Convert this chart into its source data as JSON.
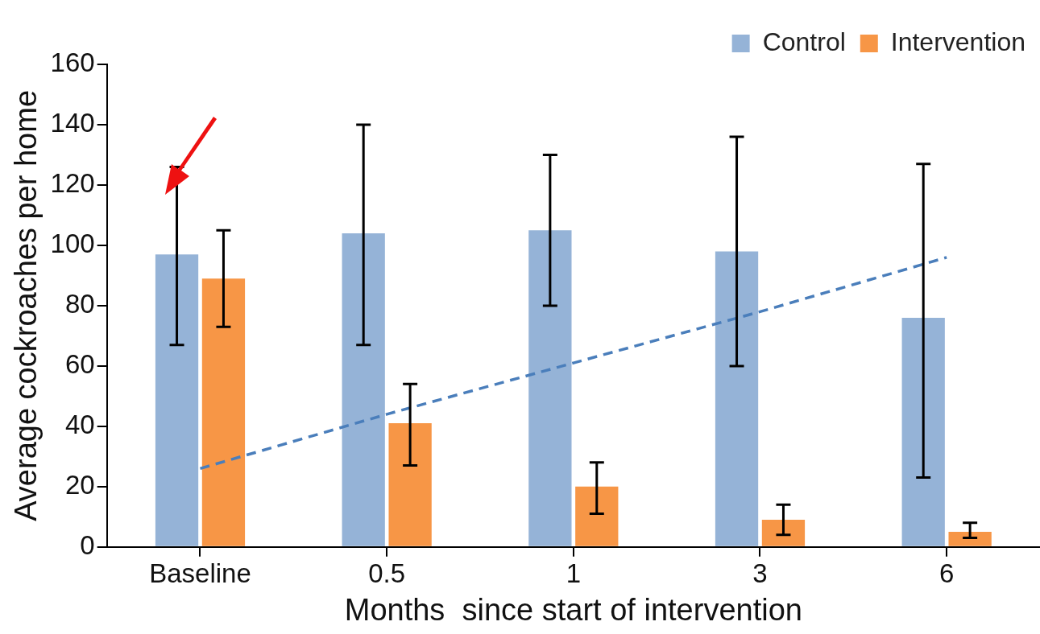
{
  "chart_data": {
    "type": "bar",
    "xlabel": "Months  since start of intervention",
    "ylabel": "Average cockroaches per home",
    "categories": [
      "Baseline",
      "0.5",
      "1",
      "3",
      "6"
    ],
    "series": [
      {
        "name": "Control",
        "color": "#95b3d7",
        "values": [
          97,
          104,
          105,
          98,
          76
        ],
        "errors": [
          [
            67,
            126
          ],
          [
            67,
            140
          ],
          [
            80,
            130
          ],
          [
            60,
            136
          ],
          [
            23,
            127
          ]
        ]
      },
      {
        "name": "Intervention",
        "color": "#f79646",
        "values": [
          89,
          41,
          20,
          9,
          5
        ],
        "errors": [
          [
            73,
            105
          ],
          [
            27,
            54
          ],
          [
            11,
            28
          ],
          [
            4,
            14
          ],
          [
            3,
            8
          ]
        ]
      },
      {
        "type": "line",
        "color": "#4a7ebb",
        "line_style": "dashed",
        "marker": "none",
        "values": [
          26,
          44,
          61,
          78,
          96
        ]
      }
    ],
    "ylim": [
      0,
      160
    ],
    "yticks": [
      0,
      20,
      40,
      60,
      80,
      100,
      120,
      140,
      160
    ],
    "grid": false,
    "legend": "top right"
  }
}
